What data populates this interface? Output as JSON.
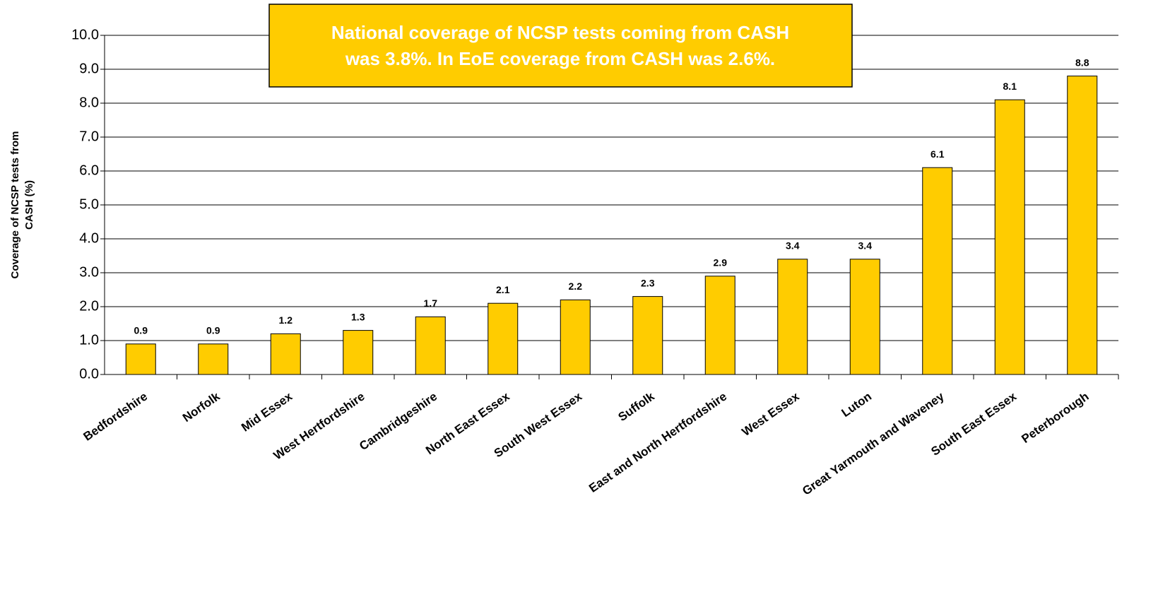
{
  "chart_data": {
    "type": "bar",
    "annotation": [
      "National coverage of NCSP tests coming from CASH",
      "was 3.8%. In EoE coverage from CASH was 2.6%."
    ],
    "y_label": [
      "Coverage of NCSP tests from",
      "CASH (%)"
    ],
    "categories": [
      "Bedfordshire",
      "Norfolk",
      "Mid Essex",
      "West Hertfordshire",
      "Cambridgeshire",
      "North East Essex",
      "South West Essex",
      "Suffolk",
      "East and North Hertfordshire",
      "West Essex",
      "Luton",
      "Great Yarmouth and Waveney",
      "South East Essex",
      "Peterborough"
    ],
    "values": [
      0.9,
      0.9,
      1.2,
      1.3,
      1.7,
      2.1,
      2.2,
      2.3,
      2.9,
      3.4,
      3.4,
      6.1,
      8.1,
      8.8
    ],
    "color": "#FFCC00",
    "ylim": [
      0,
      10
    ],
    "yticks": [
      {
        "value": 0,
        "label": "0.0"
      },
      {
        "value": 1,
        "label": "1.0"
      },
      {
        "value": 2,
        "label": "2.0"
      },
      {
        "value": 3,
        "label": "3.0"
      },
      {
        "value": 4,
        "label": "4.0"
      },
      {
        "value": 5,
        "label": "5.0"
      },
      {
        "value": 6,
        "label": "6.0"
      },
      {
        "value": 7,
        "label": "7.0"
      },
      {
        "value": 8,
        "label": "8.0"
      },
      {
        "value": 9,
        "label": "9.0"
      },
      {
        "value": 10,
        "label": "10.0"
      }
    ],
    "grid": true
  }
}
